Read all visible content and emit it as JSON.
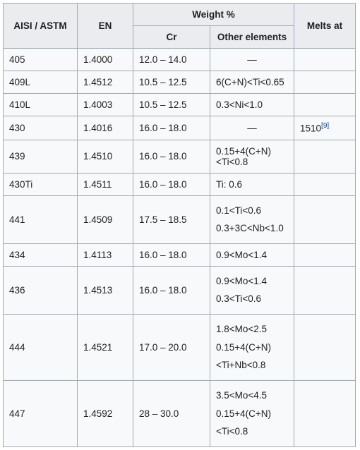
{
  "headers": {
    "aisi": "AISI / ASTM",
    "en": "EN",
    "weight": "Weight %",
    "cr": "Cr",
    "other": "Other elements",
    "melts": "Melts at"
  },
  "ref": {
    "label": "[9]"
  },
  "rows": [
    {
      "aisi": "405",
      "en": "1.4000",
      "cr": "12.0 – 14.0",
      "other": "—",
      "other_center": true,
      "melts": ""
    },
    {
      "aisi": "409L",
      "en": "1.4512",
      "cr": "10.5 – 12.5",
      "other": "6(C+N)<Ti<0.65",
      "melts": ""
    },
    {
      "aisi": "410L",
      "en": "1.4003",
      "cr": "10.5 – 12.5",
      "other": "0.3<Ni<1.0",
      "melts": ""
    },
    {
      "aisi": "430",
      "en": "1.4016",
      "cr": "16.0 – 18.0",
      "other": "—",
      "other_center": true,
      "melts": "1510",
      "melts_ref": true
    },
    {
      "aisi": "439",
      "en": "1.4510",
      "cr": "16.0 – 18.0",
      "other": "0.15+4(C+N)<Ti<0.8",
      "melts": ""
    },
    {
      "aisi": "430Ti",
      "en": "1.4511",
      "cr": "16.0 – 18.0",
      "other": "Ti: 0.6",
      "melts": ""
    },
    {
      "aisi": "441",
      "en": "1.4509",
      "cr": "17.5 – 18.5",
      "other_lines": [
        "0.1<Ti<0.6",
        "0.3+3C<Nb<1.0"
      ],
      "melts": ""
    },
    {
      "aisi": "434",
      "en": "1.4113",
      "cr": "16.0 – 18.0",
      "other": "0.9<Mo<1.4",
      "melts": ""
    },
    {
      "aisi": "436",
      "en": "1.4513",
      "cr": "16.0 – 18.0",
      "other_lines": [
        "0.9<Mo<1.4",
        "0.3<Ti<0.6"
      ],
      "melts": ""
    },
    {
      "aisi": "444",
      "en": "1.4521",
      "cr": "17.0 – 20.0",
      "other_lines": [
        "1.8<Mo<2.5",
        "0.15+4(C+N)<Ti+Nb<0.8"
      ],
      "melts": ""
    },
    {
      "aisi": "447",
      "en": "1.4592",
      "cr": "28 – 30.0",
      "other_lines": [
        "3.5<Mo<4.5",
        "0.15+4(C+N)<Ti<0.8"
      ],
      "melts": ""
    }
  ]
}
